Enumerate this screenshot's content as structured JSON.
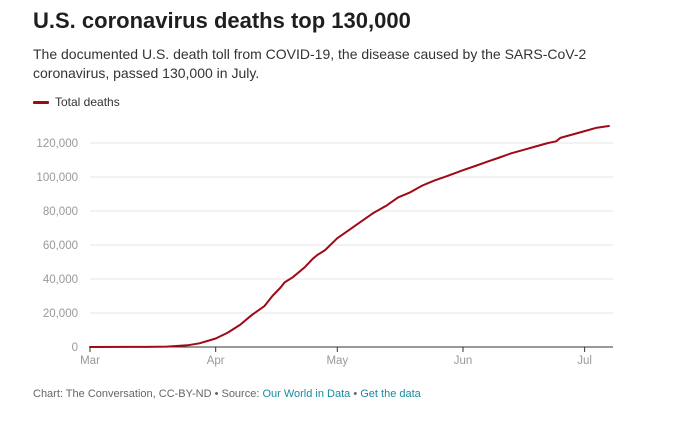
{
  "title": "U.S. coronavirus deaths top 130,000",
  "subtitle": "The documented U.S. death toll from COVID-19, the disease caused by the SARS-CoV-2 coronavirus, passed 130,000 in July.",
  "legend": {
    "label": "Total deaths",
    "color": "#9e0a16"
  },
  "footer": {
    "prefix": "Chart: The Conversation, CC-BY-ND • Source: ",
    "source_link": "Our World in Data",
    "separator": " • ",
    "data_link": "Get the data"
  },
  "colors": {
    "line": "#9e0a16",
    "grid": "#e6e6e6",
    "axis": "#333333",
    "tick_text": "#999999",
    "link": "#1a8aa0"
  },
  "chart_data": {
    "type": "line",
    "title": "U.S. coronavirus deaths top 130,000",
    "xlabel": "",
    "ylabel": "",
    "x_tick_labels": [
      "Mar",
      "Apr",
      "May",
      "Jun",
      "Jul"
    ],
    "x_tick_dates": [
      "2020-03-01",
      "2020-04-01",
      "2020-05-01",
      "2020-06-01",
      "2020-07-01"
    ],
    "xlim": [
      "2020-03-01",
      "2020-07-08"
    ],
    "y_tick_labels": [
      "0",
      "20,000",
      "40,000",
      "60,000",
      "80,000",
      "100,000",
      "120,000"
    ],
    "ylim": [
      0,
      130000
    ],
    "grid": true,
    "legend_position": "top-left",
    "series": [
      {
        "name": "Total deaths",
        "x": [
          "2020-03-01",
          "2020-03-10",
          "2020-03-15",
          "2020-03-20",
          "2020-03-25",
          "2020-03-28",
          "2020-04-01",
          "2020-04-04",
          "2020-04-07",
          "2020-04-10",
          "2020-04-13",
          "2020-04-15",
          "2020-04-17",
          "2020-04-18",
          "2020-04-20",
          "2020-04-23",
          "2020-04-25",
          "2020-04-26",
          "2020-04-28",
          "2020-05-01",
          "2020-05-04",
          "2020-05-07",
          "2020-05-10",
          "2020-05-13",
          "2020-05-16",
          "2020-05-19",
          "2020-05-22",
          "2020-05-25",
          "2020-05-28",
          "2020-06-01",
          "2020-06-04",
          "2020-06-07",
          "2020-06-10",
          "2020-06-13",
          "2020-06-16",
          "2020-06-19",
          "2020-06-22",
          "2020-06-24",
          "2020-06-25",
          "2020-06-28",
          "2020-07-01",
          "2020-07-04",
          "2020-07-07"
        ],
        "values": [
          0,
          30,
          70,
          250,
          1000,
          2200,
          5000,
          8500,
          13000,
          19000,
          24000,
          30000,
          35000,
          38000,
          41000,
          47000,
          52000,
          54000,
          57000,
          64000,
          69000,
          74000,
          79000,
          83000,
          88000,
          91000,
          95000,
          98000,
          100500,
          104000,
          106500,
          109000,
          111500,
          114000,
          116000,
          118000,
          120000,
          121000,
          123000,
          125000,
          127000,
          129000,
          130000
        ]
      }
    ]
  }
}
